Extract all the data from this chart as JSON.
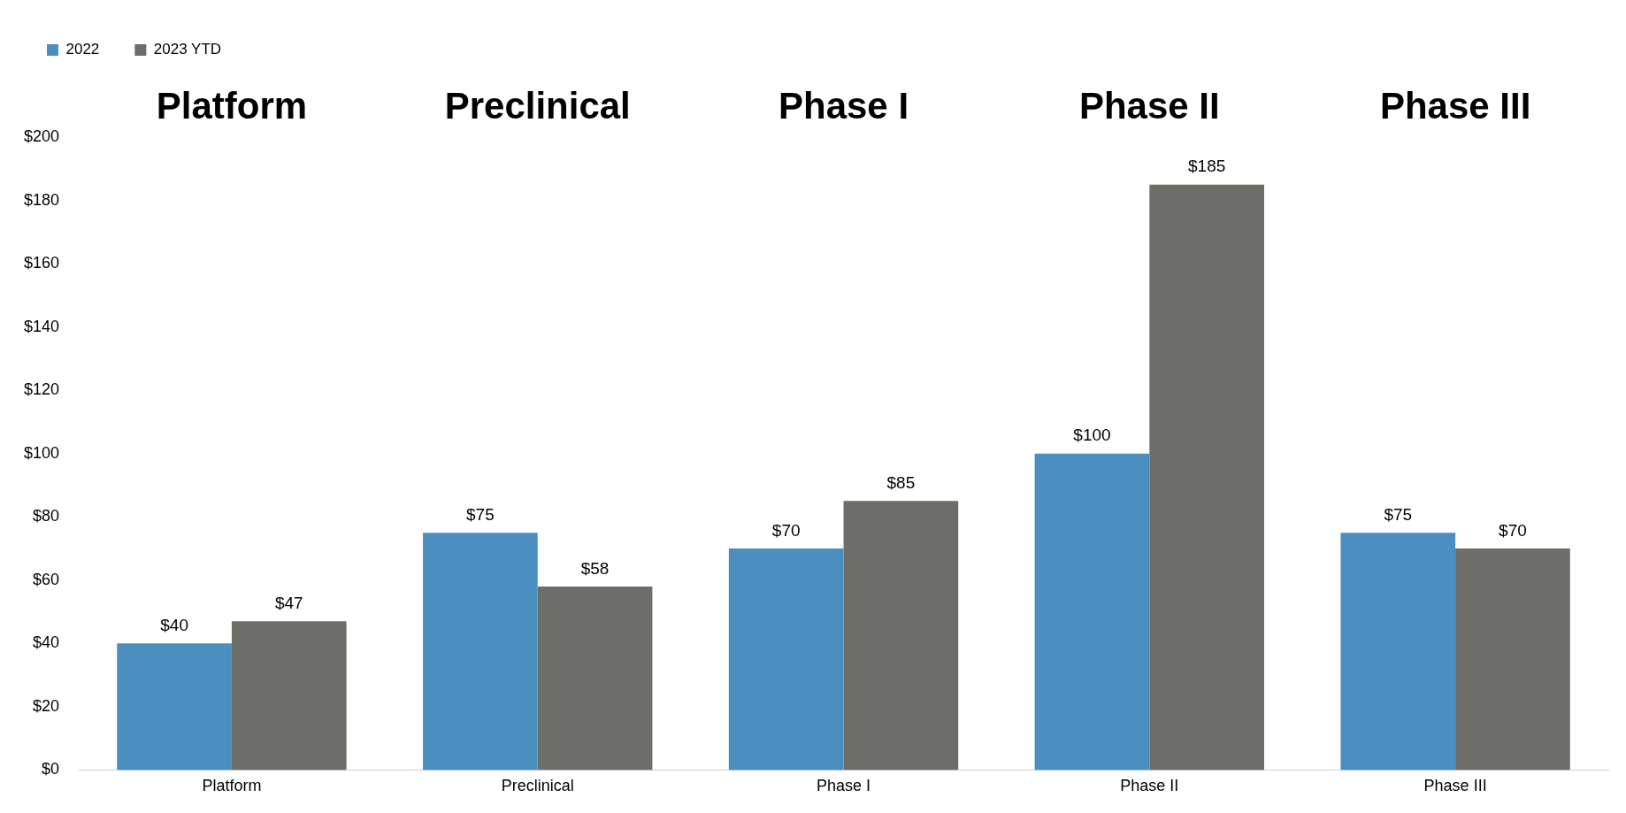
{
  "chart_data": {
    "type": "bar",
    "categories": [
      "Platform",
      "Preclinical",
      "Phase I",
      "Phase II",
      "Phase III"
    ],
    "series": [
      {
        "name": "2022",
        "color": "#4a8fc0",
        "values": [
          40,
          75,
          70,
          100,
          75
        ],
        "value_labels": [
          "$40",
          "$75",
          "$70",
          "$100",
          "$75"
        ]
      },
      {
        "name": "2023 YTD",
        "color": "#6d6e69",
        "values": [
          47,
          58,
          85,
          185,
          70
        ],
        "value_labels": [
          "$47",
          "$58",
          "$85",
          "$185",
          "$70"
        ]
      }
    ],
    "ylim": [
      0,
      200
    ],
    "yticks": [
      {
        "value": 0,
        "label": "$0"
      },
      {
        "value": 20,
        "label": "$20"
      },
      {
        "value": 40,
        "label": "$40"
      },
      {
        "value": 60,
        "label": "$60"
      },
      {
        "value": 80,
        "label": "$80"
      },
      {
        "value": 100,
        "label": "$100"
      },
      {
        "value": 120,
        "label": "$120"
      },
      {
        "value": 140,
        "label": "$140"
      },
      {
        "value": 160,
        "label": "$160"
      },
      {
        "value": 180,
        "label": "$180"
      },
      {
        "value": 200,
        "label": "$200"
      }
    ],
    "annotations": [
      "Platform",
      "Preclinical",
      "Phase I",
      "Phase II",
      "Phase III"
    ],
    "grid": false,
    "legend": "top left"
  }
}
